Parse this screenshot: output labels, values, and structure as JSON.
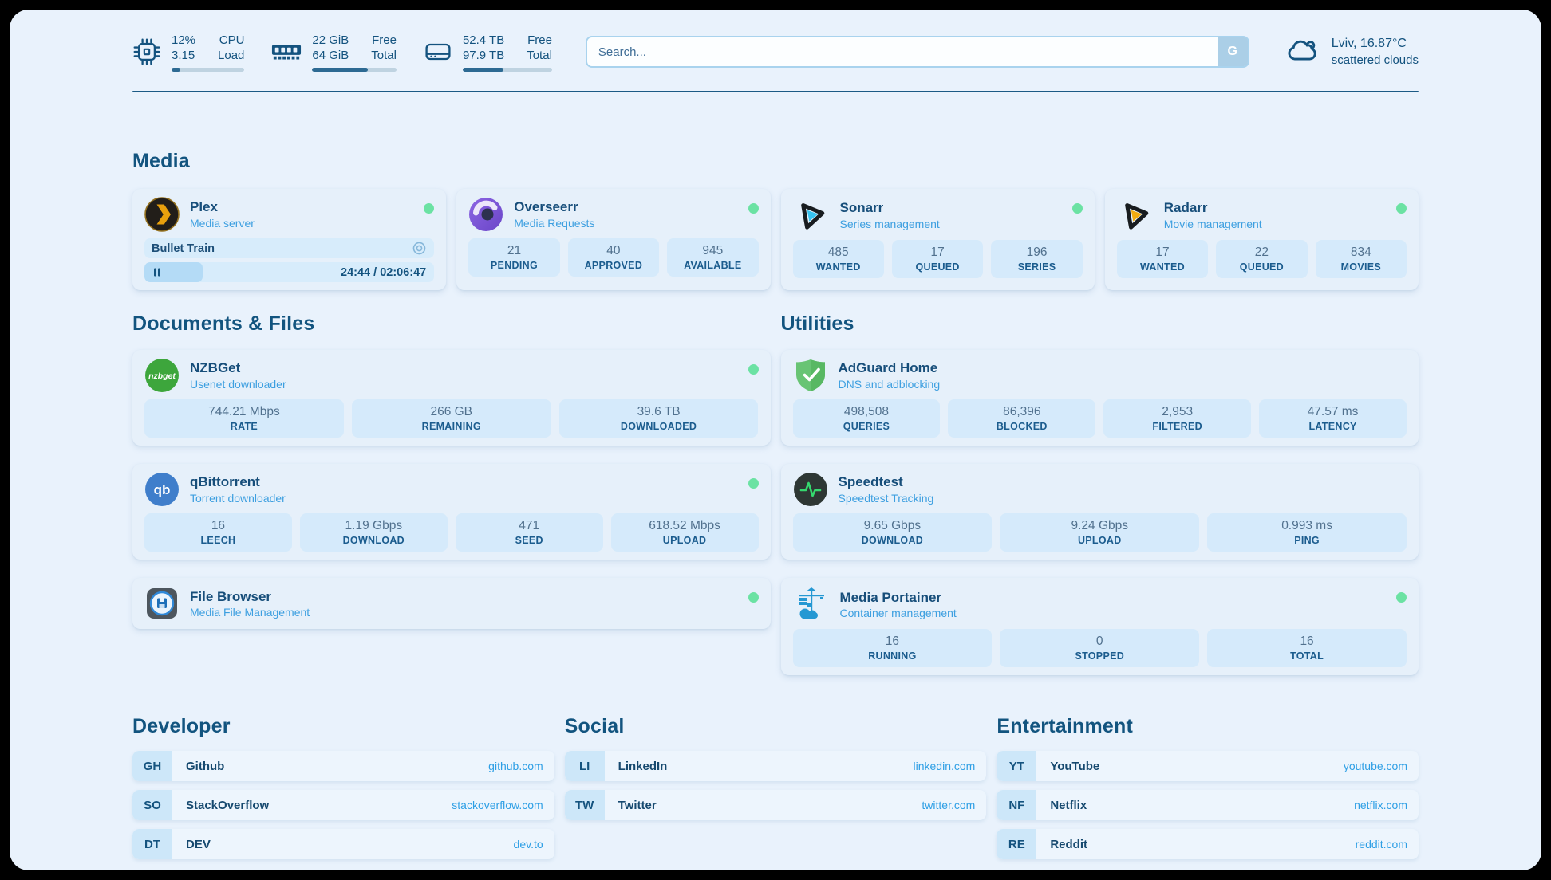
{
  "colors": {
    "accent_navy": "#14537f",
    "link_blue": "#2e9fe5",
    "status_green": "#6be2a3"
  },
  "header": {
    "stats": [
      {
        "icon": "cpu-icon",
        "value_top": "12%",
        "label_top": "CPU",
        "value_bottom": "3.15",
        "label_bottom": "Load",
        "progress_pct": 12
      },
      {
        "icon": "ram-icon",
        "value_top": "22 GiB",
        "label_top": "Free",
        "value_bottom": "64 GiB",
        "label_bottom": "Total",
        "progress_pct": 66
      },
      {
        "icon": "disk-icon",
        "value_top": "52.4 TB",
        "label_top": "Free",
        "value_bottom": "97.9 TB",
        "label_bottom": "Total",
        "progress_pct": 46
      }
    ],
    "search": {
      "placeholder": "Search...",
      "button_label": "G"
    },
    "weather": {
      "summary": "Lviv, 16.87°C",
      "condition": "scattered clouds"
    }
  },
  "sections": {
    "media": {
      "title": "Media",
      "cards": {
        "plex": {
          "title": "Plex",
          "subtitle": "Media server",
          "status": "online",
          "session": {
            "name": "Bullet Train",
            "time": "24:44 / 02:06:47",
            "progress_pct": 20
          }
        },
        "overseerr": {
          "title": "Overseerr",
          "subtitle": "Media Requests",
          "status": "online",
          "stats": [
            {
              "value": "21",
              "label": "PENDING"
            },
            {
              "value": "40",
              "label": "APPROVED"
            },
            {
              "value": "945",
              "label": "AVAILABLE"
            }
          ]
        },
        "sonarr": {
          "title": "Sonarr",
          "subtitle": "Series management",
          "status": "online",
          "stats": [
            {
              "value": "485",
              "label": "WANTED"
            },
            {
              "value": "17",
              "label": "QUEUED"
            },
            {
              "value": "196",
              "label": "SERIES"
            }
          ]
        },
        "radarr": {
          "title": "Radarr",
          "subtitle": "Movie management",
          "status": "online",
          "stats": [
            {
              "value": "17",
              "label": "WANTED"
            },
            {
              "value": "22",
              "label": "QUEUED"
            },
            {
              "value": "834",
              "label": "MOVIES"
            }
          ]
        }
      }
    },
    "documents": {
      "title": "Documents & Files",
      "cards": {
        "nzbget": {
          "title": "NZBGet",
          "subtitle": "Usenet downloader",
          "status": "online",
          "stats": [
            {
              "value": "744.21 Mbps",
              "label": "RATE"
            },
            {
              "value": "266 GB",
              "label": "REMAINING"
            },
            {
              "value": "39.6 TB",
              "label": "DOWNLOADED"
            }
          ]
        },
        "qbittorrent": {
          "title": "qBittorrent",
          "subtitle": "Torrent downloader",
          "status": "online",
          "stats": [
            {
              "value": "16",
              "label": "LEECH"
            },
            {
              "value": "1.19 Gbps",
              "label": "DOWNLOAD"
            },
            {
              "value": "471",
              "label": "SEED"
            },
            {
              "value": "618.52 Mbps",
              "label": "UPLOAD"
            }
          ]
        },
        "filebrowser": {
          "title": "File Browser",
          "subtitle": "Media File Management",
          "status": "online"
        }
      }
    },
    "utilities": {
      "title": "Utilities",
      "cards": {
        "adguard": {
          "title": "AdGuard Home",
          "subtitle": "DNS and adblocking",
          "stats": [
            {
              "value": "498,508",
              "label": "QUERIES"
            },
            {
              "value": "86,396",
              "label": "BLOCKED"
            },
            {
              "value": "2,953",
              "label": "FILTERED"
            },
            {
              "value": "47.57 ms",
              "label": "LATENCY"
            }
          ]
        },
        "speedtest": {
          "title": "Speedtest",
          "subtitle": "Speedtest Tracking",
          "stats": [
            {
              "value": "9.65 Gbps",
              "label": "DOWNLOAD"
            },
            {
              "value": "9.24 Gbps",
              "label": "UPLOAD"
            },
            {
              "value": "0.993 ms",
              "label": "PING"
            }
          ]
        },
        "portainer": {
          "title": "Media Portainer",
          "subtitle": "Container management",
          "status": "online",
          "stats": [
            {
              "value": "16",
              "label": "RUNNING"
            },
            {
              "value": "0",
              "label": "STOPPED"
            },
            {
              "value": "16",
              "label": "TOTAL"
            }
          ]
        }
      }
    },
    "links": [
      {
        "title": "Developer",
        "items": [
          {
            "abbr": "GH",
            "name": "Github",
            "url": "github.com"
          },
          {
            "abbr": "SO",
            "name": "StackOverflow",
            "url": "stackoverflow.com"
          },
          {
            "abbr": "DT",
            "name": "DEV",
            "url": "dev.to"
          }
        ]
      },
      {
        "title": "Social",
        "items": [
          {
            "abbr": "LI",
            "name": "LinkedIn",
            "url": "linkedin.com"
          },
          {
            "abbr": "TW",
            "name": "Twitter",
            "url": "twitter.com"
          }
        ]
      },
      {
        "title": "Entertainment",
        "items": [
          {
            "abbr": "YT",
            "name": "YouTube",
            "url": "youtube.com"
          },
          {
            "abbr": "NF",
            "name": "Netflix",
            "url": "netflix.com"
          },
          {
            "abbr": "RE",
            "name": "Reddit",
            "url": "reddit.com"
          }
        ]
      }
    ]
  }
}
